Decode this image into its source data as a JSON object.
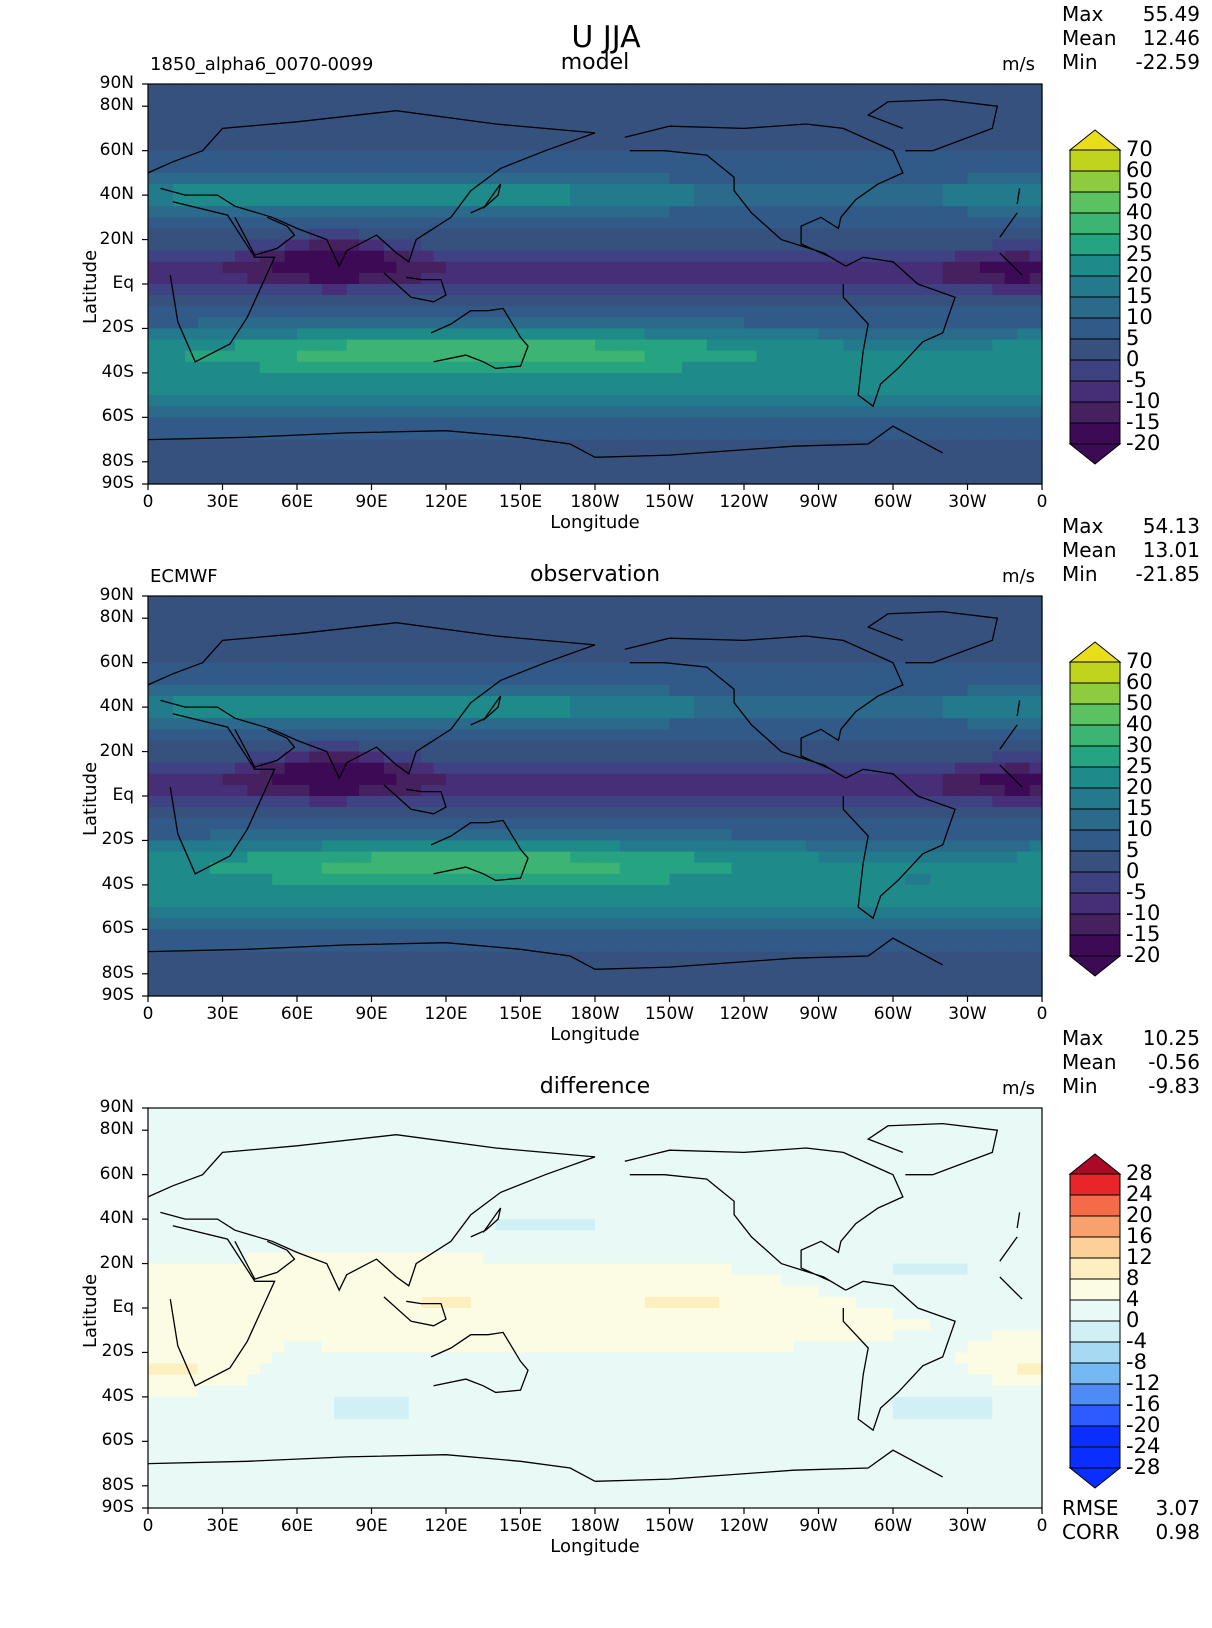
{
  "title": "U JJA",
  "colors": {
    "model_scale": [
      "#3d0a55",
      "#45215f",
      "#462f77",
      "#3f4282",
      "#37517f",
      "#315a89",
      "#2b6a8a",
      "#237a8c",
      "#1f8a8a",
      "#26a482",
      "#3db374",
      "#5cc25f",
      "#8fcb3e",
      "#c0d41e",
      "#e8de1a"
    ],
    "diff_scale": [
      "#0a2eff",
      "#2d5bff",
      "#4f8bf7",
      "#75b9f2",
      "#a7d9f2",
      "#d1f0f5",
      "#e9f9f6",
      "#fbfce3",
      "#fdefc0",
      "#fdd09a",
      "#f9a16c",
      "#f46b47",
      "#e8262a",
      "#aa0a26"
    ]
  },
  "chart_data": [
    {
      "type": "heatmap",
      "name": "model",
      "title": "model",
      "left_label": "1850_alpha6_0070-0099",
      "units": "m/s",
      "xlabel": "Longitude",
      "ylabel": "Latitude",
      "x_ticks": [
        "0",
        "30E",
        "60E",
        "90E",
        "120E",
        "150E",
        "180W",
        "150W",
        "120W",
        "90W",
        "60W",
        "30W",
        "0"
      ],
      "y_ticks": [
        "90N",
        "80N",
        "60N",
        "40N",
        "20N",
        "Eq",
        "20S",
        "40S",
        "60S",
        "80S",
        "90S"
      ],
      "y_tick_values": [
        90,
        80,
        60,
        40,
        20,
        0,
        -20,
        -40,
        -60,
        -80,
        -90
      ],
      "stats": [
        {
          "label": "Max",
          "value": "55.49"
        },
        {
          "label": "Mean",
          "value": "12.46"
        },
        {
          "label": "Min",
          "value": "-22.59"
        }
      ],
      "colorbar": [
        "70",
        "60",
        "50",
        "40",
        "30",
        "25",
        "20",
        "15",
        "10",
        "5",
        "0",
        "-5",
        "-10",
        "-15",
        "-20"
      ]
    },
    {
      "type": "heatmap",
      "name": "observation",
      "title": "observation",
      "left_label": "ECMWF",
      "units": "m/s",
      "xlabel": "Longitude",
      "ylabel": "Latitude",
      "x_ticks": [
        "0",
        "30E",
        "60E",
        "90E",
        "120E",
        "150E",
        "180W",
        "150W",
        "120W",
        "90W",
        "60W",
        "30W",
        "0"
      ],
      "y_ticks": [
        "90N",
        "80N",
        "60N",
        "40N",
        "20N",
        "Eq",
        "20S",
        "40S",
        "60S",
        "80S",
        "90S"
      ],
      "y_tick_values": [
        90,
        80,
        60,
        40,
        20,
        0,
        -20,
        -40,
        -60,
        -80,
        -90
      ],
      "stats": [
        {
          "label": "Max",
          "value": "54.13"
        },
        {
          "label": "Mean",
          "value": "13.01"
        },
        {
          "label": "Min",
          "value": "-21.85"
        }
      ],
      "colorbar": [
        "70",
        "60",
        "50",
        "40",
        "30",
        "25",
        "20",
        "15",
        "10",
        "5",
        "0",
        "-5",
        "-10",
        "-15",
        "-20"
      ]
    },
    {
      "type": "heatmap",
      "name": "difference",
      "title": "difference",
      "left_label": "",
      "units": "m/s",
      "xlabel": "Longitude",
      "ylabel": "Latitude",
      "x_ticks": [
        "0",
        "30E",
        "60E",
        "90E",
        "120E",
        "150E",
        "180W",
        "150W",
        "120W",
        "90W",
        "60W",
        "30W",
        "0"
      ],
      "y_ticks": [
        "90N",
        "80N",
        "60N",
        "40N",
        "20N",
        "Eq",
        "20S",
        "40S",
        "60S",
        "80S",
        "90S"
      ],
      "y_tick_values": [
        90,
        80,
        60,
        40,
        20,
        0,
        -20,
        -40,
        -60,
        -80,
        -90
      ],
      "stats": [
        {
          "label": "Max",
          "value": "10.25"
        },
        {
          "label": "Mean",
          "value": "-0.56"
        },
        {
          "label": "Min",
          "value": "-9.83"
        }
      ],
      "colorbar": [
        "28",
        "24",
        "20",
        "16",
        "12",
        "8",
        "4",
        "0",
        "-4",
        "-8",
        "-12",
        "-16",
        "-20",
        "-24",
        "-28"
      ],
      "extra_stats": [
        {
          "label": "RMSE",
          "value": "3.07"
        },
        {
          "label": "CORR",
          "value": "0.98"
        }
      ]
    }
  ]
}
